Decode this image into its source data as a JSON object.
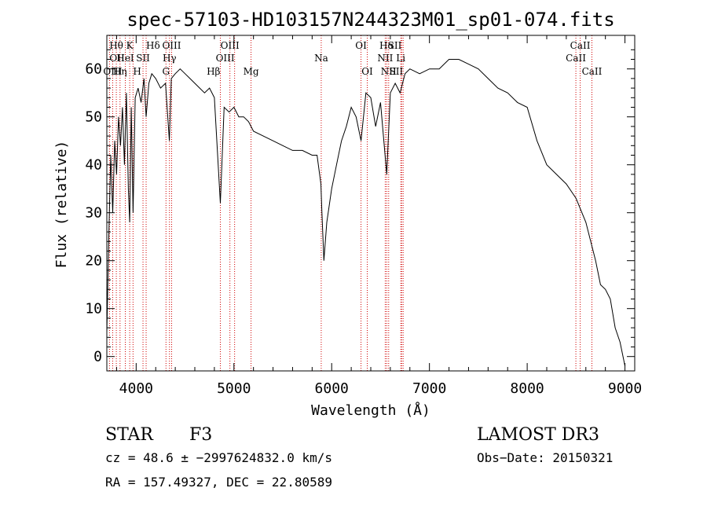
{
  "chart_data": {
    "type": "line",
    "title": "spec-57103-HD103157N244323M01_sp01-074.fits",
    "xlabel": "Wavelength (Å)",
    "ylabel": "Flux (relative)",
    "xlim": [
      3700,
      9100
    ],
    "ylim": [
      -3,
      67
    ],
    "xticks": [
      4000,
      5000,
      6000,
      7000,
      8000,
      9000
    ],
    "yticks": [
      0,
      10,
      20,
      30,
      40,
      50,
      60
    ],
    "grid": false,
    "line_color": "#000000",
    "marker_color": "#d00000",
    "series": [
      {
        "x": [
          3700,
          3720,
          3740,
          3760,
          3780,
          3800,
          3820,
          3840,
          3860,
          3880,
          3900,
          3920,
          3934,
          3950,
          3968,
          3990,
          4020,
          4050,
          4080,
          4102,
          4130,
          4160,
          4200,
          4250,
          4300,
          4340,
          4360,
          4400,
          4450,
          4500,
          4550,
          4600,
          4650,
          4700,
          4750,
          4800,
          4861,
          4900,
          4950,
          5000,
          5050,
          5100,
          5150,
          5200,
          5300,
          5400,
          5500,
          5600,
          5700,
          5800,
          5850,
          5890,
          5900,
          5920,
          5950,
          6000,
          6050,
          6100,
          6150,
          6200,
          6250,
          6300,
          6350,
          6400,
          6450,
          6500,
          6563,
          6600,
          6650,
          6700,
          6750,
          6800,
          6900,
          7000,
          7100,
          7200,
          7300,
          7400,
          7500,
          7600,
          7700,
          7800,
          7900,
          8000,
          8100,
          8200,
          8300,
          8400,
          8500,
          8600,
          8700,
          8750,
          8800,
          8850,
          8900,
          8950,
          9000
        ],
        "y": [
          5,
          25,
          42,
          30,
          45,
          38,
          50,
          44,
          52,
          40,
          55,
          35,
          28,
          52,
          30,
          54,
          56,
          53,
          58,
          50,
          57,
          59,
          58,
          56,
          57,
          45,
          58,
          59,
          60,
          59,
          58,
          57,
          56,
          55,
          56,
          54,
          32,
          52,
          51,
          52,
          50,
          50,
          49,
          47,
          46,
          45,
          44,
          43,
          43,
          42,
          42,
          36,
          30,
          20,
          28,
          35,
          40,
          45,
          48,
          52,
          50,
          45,
          55,
          54,
          48,
          53,
          38,
          55,
          57,
          55,
          59,
          60,
          59,
          60,
          60,
          62,
          62,
          61,
          60,
          58,
          56,
          55,
          53,
          52,
          45,
          40,
          38,
          36,
          33,
          28,
          20,
          15,
          14,
          12,
          6,
          3,
          -2
        ]
      }
    ],
    "line_markers": [
      {
        "label": "Hθ",
        "x": 3797,
        "row": 0,
        "anchor": "middle"
      },
      {
        "label": "OII",
        "x": 3727,
        "row": 1,
        "anchor": "start"
      },
      {
        "label": "OIII",
        "x": 3760,
        "row": 2,
        "anchor": "middle"
      },
      {
        "label": "Hη",
        "x": 3835,
        "row": 2,
        "anchor": "middle"
      },
      {
        "label": "HeI",
        "x": 3889,
        "row": 1,
        "anchor": "middle"
      },
      {
        "label": "K",
        "x": 3934,
        "row": 0,
        "anchor": "middle"
      },
      {
        "label": "H",
        "x": 3968,
        "row": 2,
        "anchor": "start"
      },
      {
        "label": "SII",
        "x": 4070,
        "row": 1,
        "anchor": "middle"
      },
      {
        "label": "Hδ",
        "x": 4102,
        "row": 0,
        "anchor": "start"
      },
      {
        "label": "OIII",
        "x": 4363,
        "row": 0,
        "anchor": "middle"
      },
      {
        "label": "Hγ",
        "x": 4341,
        "row": 1,
        "anchor": "middle"
      },
      {
        "label": "G",
        "x": 4305,
        "row": 2,
        "anchor": "middle"
      },
      {
        "label": "Hβ",
        "x": 4861,
        "row": 2,
        "anchor": "end"
      },
      {
        "label": "OIII",
        "x": 4959,
        "row": 0,
        "anchor": "middle"
      },
      {
        "label": "OIII",
        "x": 5007,
        "row": 1,
        "anchor": "end"
      },
      {
        "label": "Mg",
        "x": 5175,
        "row": 2,
        "anchor": "middle"
      },
      {
        "label": "Na",
        "x": 5893,
        "row": 1,
        "anchor": "middle"
      },
      {
        "label": "OI",
        "x": 6300,
        "row": 0,
        "anchor": "middle"
      },
      {
        "label": "OI",
        "x": 6364,
        "row": 2,
        "anchor": "middle"
      },
      {
        "label": "Hα",
        "x": 6563,
        "row": 0,
        "anchor": "middle"
      },
      {
        "label": "NII",
        "x": 6548,
        "row": 1,
        "anchor": "middle"
      },
      {
        "label": "NII",
        "x": 6583,
        "row": 2,
        "anchor": "middle"
      },
      {
        "label": "SII",
        "x": 6716,
        "row": 0,
        "anchor": "end"
      },
      {
        "label": "Li",
        "x": 6707,
        "row": 1,
        "anchor": "middle"
      },
      {
        "label": "SII",
        "x": 6731,
        "row": 2,
        "anchor": "end"
      },
      {
        "label": "CaII",
        "x": 8498,
        "row": 1,
        "anchor": "middle"
      },
      {
        "label": "CaII",
        "x": 8542,
        "row": 0,
        "anchor": "middle"
      },
      {
        "label": "CaII",
        "x": 8662,
        "row": 2,
        "anchor": "middle"
      }
    ]
  },
  "info": {
    "class": "STAR",
    "subclass": "F3",
    "survey": "LAMOST DR3",
    "cz": "cz = 48.6 ± −2997624832.0 km/s",
    "obs_date": "Obs−Date: 20150321",
    "radec": "RA = 157.49327, DEC =  22.80589"
  }
}
